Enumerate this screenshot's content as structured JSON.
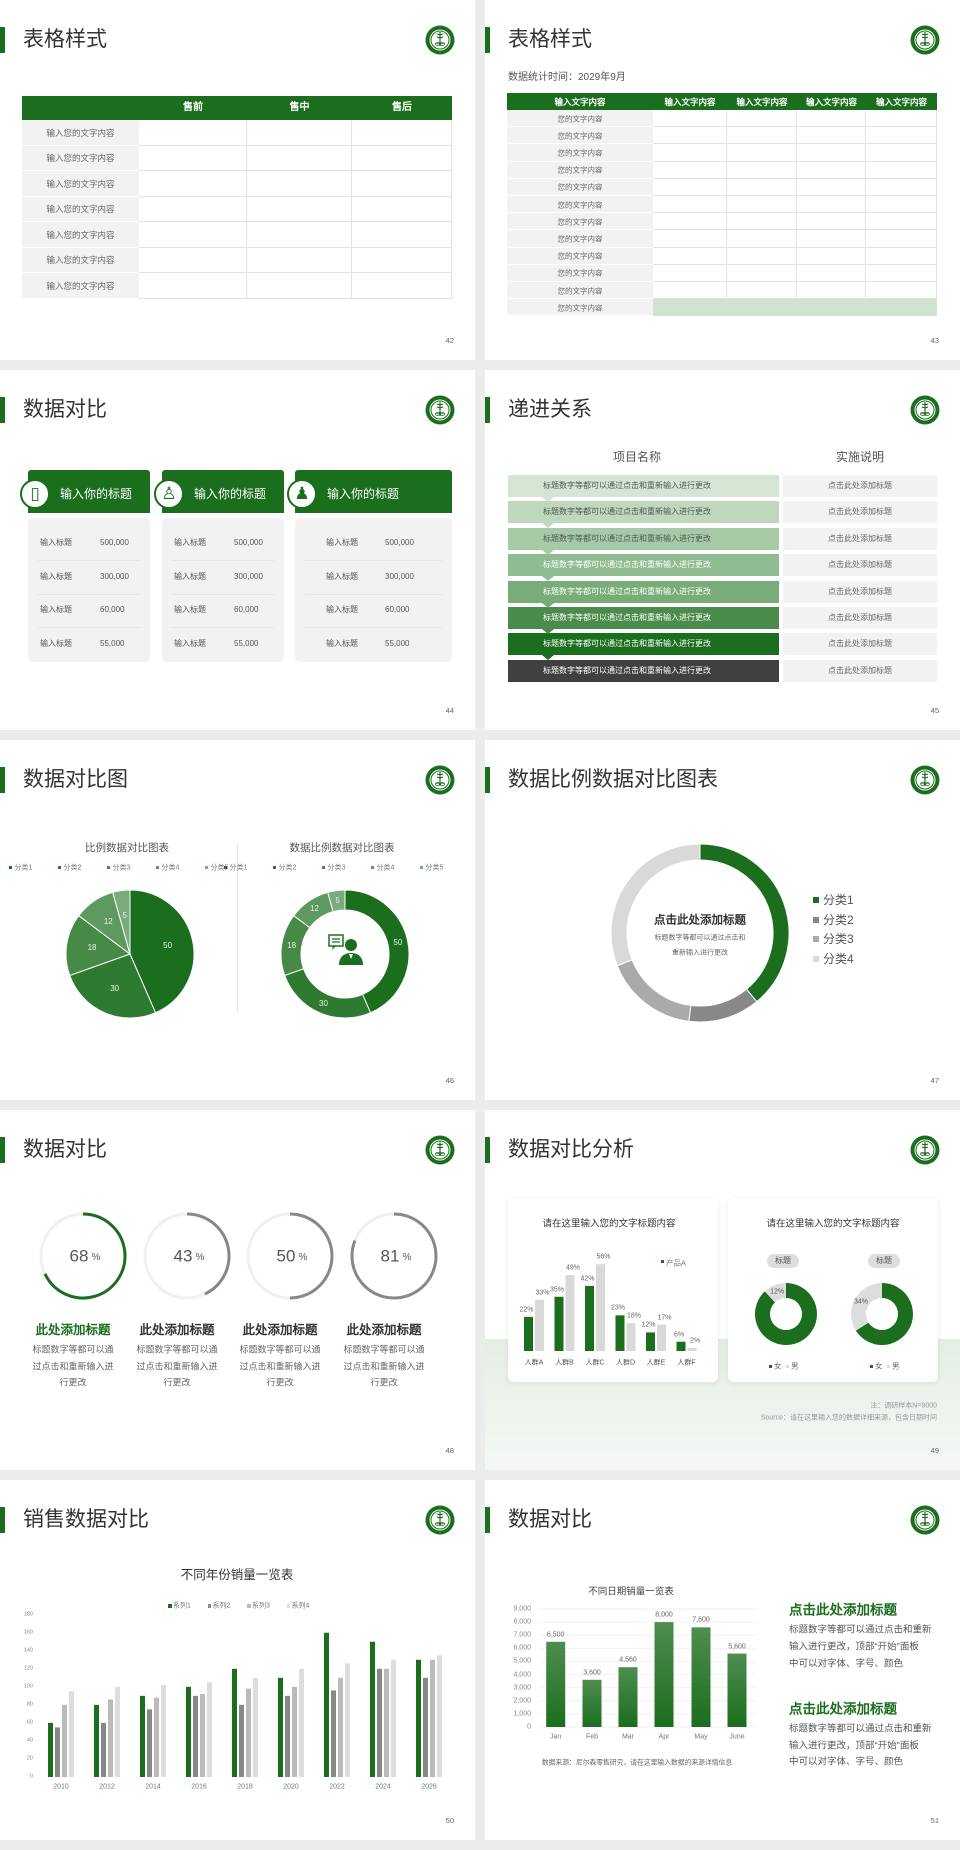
{
  "theme": {
    "green": "#1b6e1d",
    "light_grey": "#f2f2f2",
    "dark": "#404040",
    "light_green": "#cfe3cf"
  },
  "slides": [
    {
      "title": "表格样式",
      "page": "42",
      "table": {
        "headers": [
          "",
          "售前",
          "售中",
          "售后"
        ],
        "rows": [
          "输入您的文字内容",
          "输入您的文字内容",
          "输入您的文字内容",
          "输入您的文字内容",
          "输入您的文字内容",
          "输入您的文字内容",
          "输入您的文字内容"
        ]
      }
    },
    {
      "title": "表格样式",
      "page": "43",
      "subtitle": "数据统计时间：2029年9月",
      "table": {
        "headers": [
          "输入文字内容",
          "输入文字内容",
          "输入文字内容",
          "输入文字内容",
          "输入文字内容"
        ],
        "rows": [
          "您的文字内容",
          "您的文字内容",
          "您的文字内容",
          "您的文字内容",
          "您的文字内容",
          "您的文字内容",
          "您的文字内容",
          "您的文字内容",
          "您的文字内容",
          "您的文字内容",
          "您的文字内容",
          "您的文字内容"
        ]
      }
    },
    {
      "title": "数据对比",
      "page": "44",
      "cards": [
        {
          "icon": "phone-user-icon",
          "title": "输入你的标题",
          "rows": [
            {
              "label": "输入标题",
              "value": "500,000"
            },
            {
              "label": "输入标题",
              "value": "300,000"
            },
            {
              "label": "输入标题",
              "value": "60,000"
            },
            {
              "label": "输入标题",
              "value": "55,000"
            }
          ]
        },
        {
          "icon": "user-settings-icon",
          "title": "输入你的标题",
          "rows": [
            {
              "label": "输入标题",
              "value": "500,000"
            },
            {
              "label": "输入标题",
              "value": "300,000"
            },
            {
              "label": "输入标题",
              "value": "60,000"
            },
            {
              "label": "输入标题",
              "value": "55,000"
            }
          ]
        },
        {
          "icon": "user-group-icon",
          "title": "输入你的标题",
          "rows": [
            {
              "label": "输入标题",
              "value": "500,000"
            },
            {
              "label": "输入标题",
              "value": "300,000"
            },
            {
              "label": "输入标题",
              "value": "60,000"
            },
            {
              "label": "输入标题",
              "value": "55,000"
            }
          ]
        }
      ]
    },
    {
      "title": "递进关系",
      "page": "45",
      "col_headers": [
        "项目名称",
        "实施说明"
      ],
      "steps": [
        {
          "text": "标题数字等都可以通过点击和重新输入进行更改",
          "note": "点击此处添加标题",
          "color": "#d3e5d3",
          "text_color": "#555555"
        },
        {
          "text": "标题数字等都可以通过点击和重新输入进行更改",
          "note": "点击此处添加标题",
          "color": "#bdd8bd",
          "text_color": "#555555"
        },
        {
          "text": "标题数字等都可以通过点击和重新输入进行更改",
          "note": "点击此处添加标题",
          "color": "#a6caa6",
          "text_color": "#555555"
        },
        {
          "text": "标题数字等都可以通过点击和重新输入进行更改",
          "note": "点击此处添加标题",
          "color": "#8fbc90",
          "text_color": "#ffffff"
        },
        {
          "text": "标题数字等都可以通过点击和重新输入进行更改",
          "note": "点击此处添加标题",
          "color": "#78ad79",
          "text_color": "#ffffff"
        },
        {
          "text": "标题数字等都可以通过点击和重新输入进行更改",
          "note": "点击此处添加标题",
          "color": "#4b8c4c",
          "text_color": "#ffffff"
        },
        {
          "text": "标题数字等都可以通过点击和重新输入进行更改",
          "note": "点击此处添加标题",
          "color": "#1b6e1d",
          "text_color": "#ffffff"
        },
        {
          "text": "标题数字等都可以通过点击和重新输入进行更改",
          "note": "点击此处添加标题",
          "color": "#404040",
          "text_color": "#ffffff"
        }
      ]
    },
    {
      "title": "数据对比图",
      "page": "46",
      "center_icon": "customer-service-icon"
    },
    {
      "title": "数据比例数据对比图表",
      "page": "47",
      "center_title": "点击此处添加标题",
      "center_desc": [
        "标题数字等都可以通过点击和",
        "重新输入进行更改"
      ]
    },
    {
      "title": "数据对比",
      "page": "48",
      "items": [
        {
          "value": 68,
          "number": "68",
          "unit": "%",
          "color": "#1b6e1d",
          "title": "此处添加标题",
          "title_color": "#1b6e1d",
          "desc": [
            "标题数字等都可以通",
            "过点击和重新输入进",
            "行更改"
          ]
        },
        {
          "value": 43,
          "number": "43",
          "unit": "%",
          "color": "#888888",
          "title": "此处添加标题",
          "title_color": "#333333",
          "desc": [
            "标题数字等都可以通",
            "过点击和重新输入进",
            "行更改"
          ]
        },
        {
          "value": 50,
          "number": "50",
          "unit": "%",
          "color": "#888888",
          "title": "此处添加标题",
          "title_color": "#333333",
          "desc": [
            "标题数字等都可以通",
            "过点击和重新输入进",
            "行更改"
          ]
        },
        {
          "value": 81,
          "number": "81",
          "unit": "%",
          "color": "#888888",
          "title": "此处添加标题",
          "title_color": "#333333",
          "desc": [
            "标题数字等都可以通",
            "过点击和重新输入进",
            "行更改"
          ]
        }
      ]
    },
    {
      "title": "数据对比分析",
      "page": "49",
      "card_titles": [
        "请在这里输入您的文字标题内容",
        "请在这里输入您的文字标题内容"
      ],
      "note": "注：调研样本N=9000",
      "source": "Source：请在这里输入您的数据详细来源，包含日期时间"
    },
    {
      "title": "销售数据对比",
      "page": "50"
    },
    {
      "title": "数据对比",
      "page": "51",
      "source": "数据来源：尼尔森零售研究，请在这里输入数据的来源详情信息",
      "texts": [
        {
          "title": "点击此处添加标题",
          "lines": [
            "标题数字等都可以通过点击和重新",
            "输入进行更改，顶部“开始”面板",
            "中可以对字体、字号、颜色"
          ]
        },
        {
          "title": "点击此处添加标题",
          "lines": [
            "标题数字等都可以通过点击和重新",
            "输入进行更改，顶部“开始”面板",
            "中可以对字体、字号、颜色"
          ]
        }
      ]
    }
  ],
  "chart_data": [
    {
      "id": "pie-46",
      "type": "pie",
      "title": "比例数据对比图表",
      "legend": "top",
      "categories": [
        "分类1",
        "分类2",
        "分类3",
        "分类4",
        "分类5"
      ],
      "values": [
        50,
        30,
        18,
        12,
        5
      ],
      "colors": [
        "#1b6e1d",
        "#2f7a31",
        "#478a48",
        "#5e995f",
        "#7aab7a"
      ]
    },
    {
      "id": "donut-46",
      "type": "pie",
      "donut": true,
      "title": "数据比例数据对比图表",
      "legend": "top",
      "categories": [
        "分类1",
        "分类2",
        "分类3",
        "分类4",
        "分类5"
      ],
      "values": [
        50,
        30,
        18,
        12,
        5
      ],
      "colors": [
        "#1b6e1d",
        "#2f7a31",
        "#478a48",
        "#5e995f",
        "#7aab7a"
      ]
    },
    {
      "id": "donut-47",
      "type": "pie",
      "donut": true,
      "legend": "right",
      "categories": [
        "分类1",
        "分类2",
        "分类3",
        "分类4"
      ],
      "values": [
        39,
        13,
        17,
        31
      ],
      "colors": [
        "#1b6e1d",
        "#888888",
        "#aaaaaa",
        "#d9d9d9"
      ]
    },
    {
      "id": "bar-49",
      "type": "bar",
      "legend": "top-right",
      "unit": "%",
      "categories": [
        "人群A",
        "人群B",
        "人群C",
        "人群D",
        "人群E",
        "人群F"
      ],
      "series": [
        {
          "name": "产品A",
          "values": [
            22,
            35,
            42,
            23,
            12,
            6
          ],
          "color": "#1b6e1d"
        },
        {
          "values": [
            33,
            49,
            56,
            18,
            17,
            2
          ],
          "color": "#d9d9d9"
        }
      ]
    },
    {
      "id": "donut-49a",
      "type": "pie",
      "donut": true,
      "title": "标题",
      "legend": "bottom",
      "categories": [
        "女",
        "男"
      ],
      "values": [
        88,
        12
      ],
      "labels": [
        "",
        "12%"
      ],
      "colors": [
        "#1b6e1d",
        "#dddddd"
      ]
    },
    {
      "id": "donut-49b",
      "type": "pie",
      "donut": true,
      "title": "标题",
      "legend": "bottom",
      "categories": [
        "女",
        "男"
      ],
      "values": [
        66,
        34
      ],
      "labels": [
        "",
        "34%"
      ],
      "colors": [
        "#1b6e1d",
        "#dddddd"
      ]
    },
    {
      "id": "bar-50",
      "type": "bar",
      "title": "不同年份销量一览表",
      "legend": "top",
      "ylim": [
        0,
        180
      ],
      "yticks": [
        0,
        20,
        40,
        60,
        80,
        100,
        120,
        140,
        160,
        180
      ],
      "categories": [
        "2010",
        "2012",
        "2014",
        "2016",
        "2018",
        "2020",
        "2022",
        "2024",
        "2026"
      ],
      "series": [
        {
          "name": "系列1",
          "values": [
            60,
            80,
            90,
            100,
            120,
            110,
            160,
            150,
            130
          ],
          "color": "#1b6e1d"
        },
        {
          "name": "系列2",
          "values": [
            55,
            60,
            75,
            90,
            80,
            90,
            96,
            120,
            110
          ],
          "color": "#888888"
        },
        {
          "name": "系列3",
          "values": [
            80,
            86,
            88,
            92,
            98,
            100,
            110,
            120,
            130
          ],
          "color": "#bbbbbb"
        },
        {
          "name": "系列4",
          "values": [
            95,
            100,
            102,
            105,
            110,
            120,
            126,
            130,
            135
          ],
          "color": "#dddddd"
        }
      ]
    },
    {
      "id": "bar-51",
      "type": "bar",
      "title": "不同日期销量一览表",
      "ylim": [
        0,
        9000
      ],
      "grid": true,
      "yticks": [
        "0",
        "1,000",
        "2,000",
        "3,000",
        "4,000",
        "5,000",
        "6,000",
        "7,000",
        "8,000",
        "9,000"
      ],
      "categories": [
        "Jan",
        "Feb",
        "Mar",
        "Apr",
        "May",
        "June"
      ],
      "values": [
        6500,
        3600,
        4560,
        8000,
        7600,
        5600
      ],
      "labels": [
        "6,500",
        "3,600",
        "4,560",
        "8,000",
        "7,600",
        "5,600"
      ],
      "color": "#1b6e1d"
    }
  ]
}
